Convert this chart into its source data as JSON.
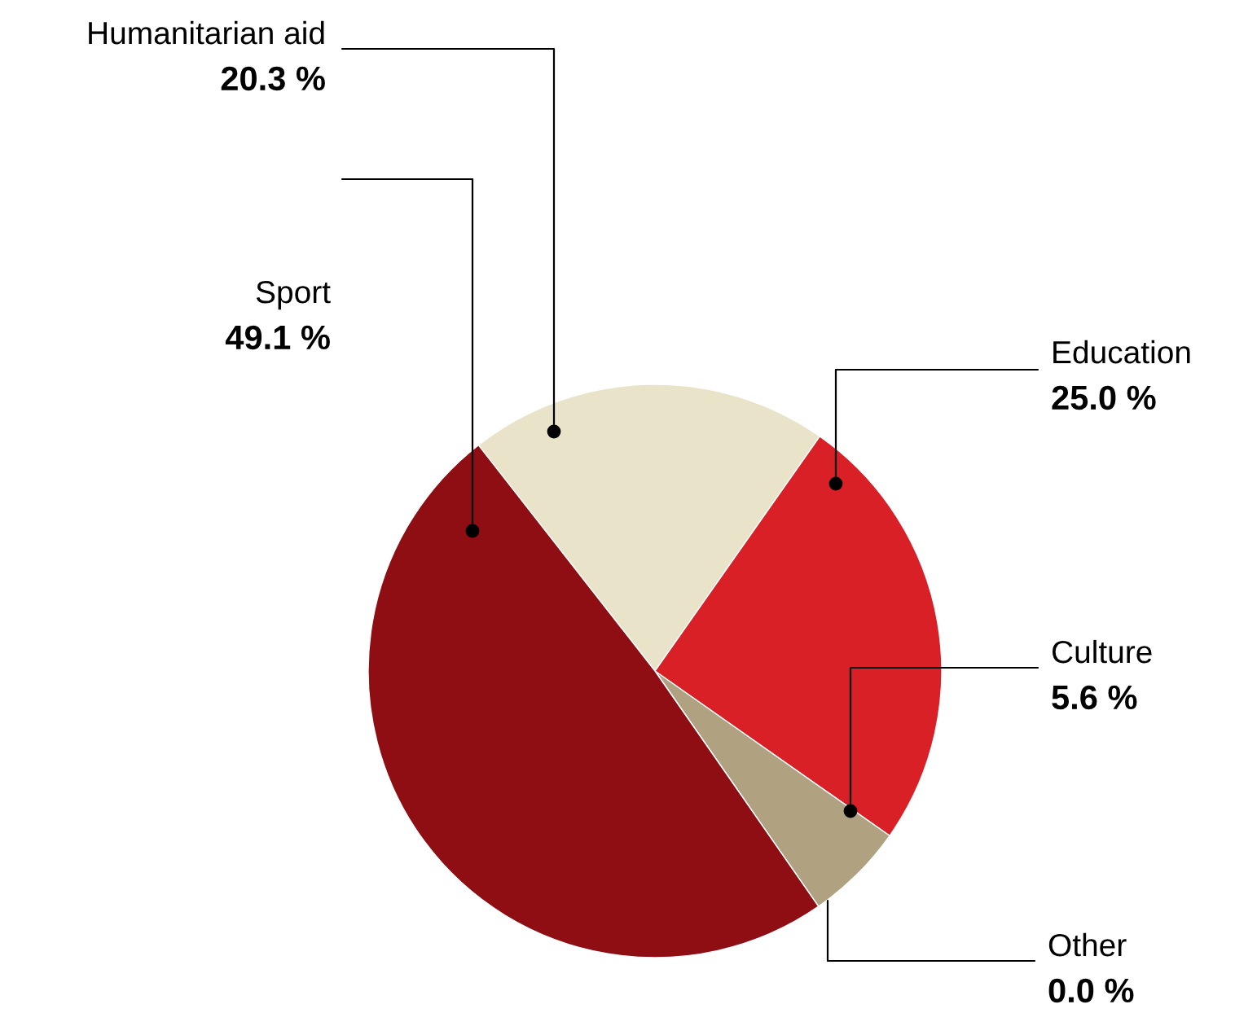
{
  "chart_data": {
    "type": "pie",
    "categories": [
      "Humanitarian aid",
      "Education",
      "Culture",
      "Other",
      "Sport"
    ],
    "values": [
      20.3,
      25.0,
      5.6,
      0.0,
      49.1
    ],
    "colors": [
      "#e8e3c9",
      "#d92027",
      "#b0a280",
      "#f2c94c",
      "#8e0e14"
    ],
    "value_labels": [
      "20.3 %",
      "25.0 %",
      "5.6 %",
      "0.0 %",
      "49.1 %"
    ],
    "legend": false
  }
}
